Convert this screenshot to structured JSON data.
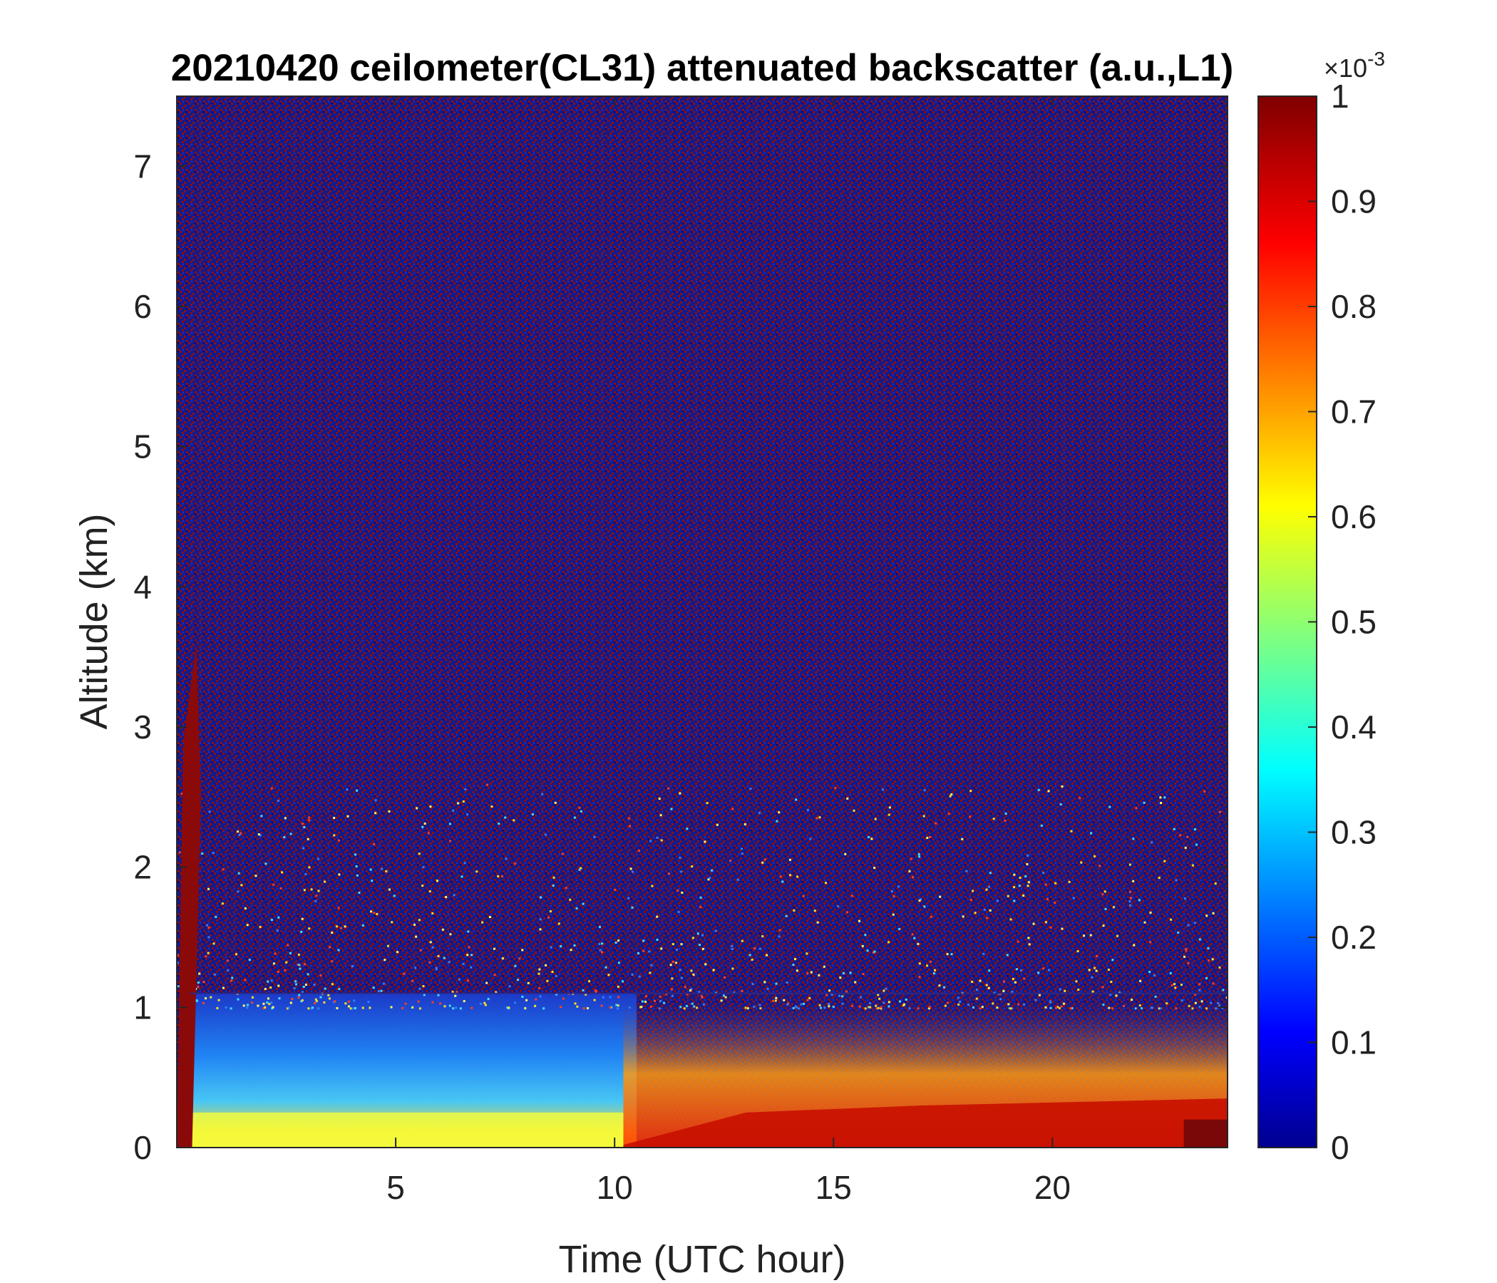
{
  "chart_data": {
    "type": "heatmap",
    "title": "20210420 ceilometer(CL31) attenuated backscatter (a.u.,L1)",
    "xlabel": "Time (UTC hour)",
    "ylabel": "Altitude (km)",
    "xlim": [
      0,
      24
    ],
    "ylim": [
      0,
      7.5
    ],
    "x_ticks": [
      5,
      10,
      15,
      20
    ],
    "y_ticks": [
      0,
      1,
      2,
      3,
      4,
      5,
      6,
      7
    ],
    "colorbar": {
      "colormap": "jet",
      "range": [
        0,
        1
      ],
      "ticks": [
        "0",
        "0.1",
        "0.2",
        "0.3",
        "0.4",
        "0.5",
        "0.6",
        "0.7",
        "0.8",
        "0.9",
        "1"
      ],
      "exponent_base": "×10",
      "exponent_power": "-3"
    },
    "features": {
      "boundary_layer_top_km": 1.1,
      "morning_layer_value": 0.35,
      "near_surface_value": 0.6,
      "afternoon_surface_value": 0.95,
      "aloft_noise": "speckled mix of 0 and 1"
    }
  }
}
